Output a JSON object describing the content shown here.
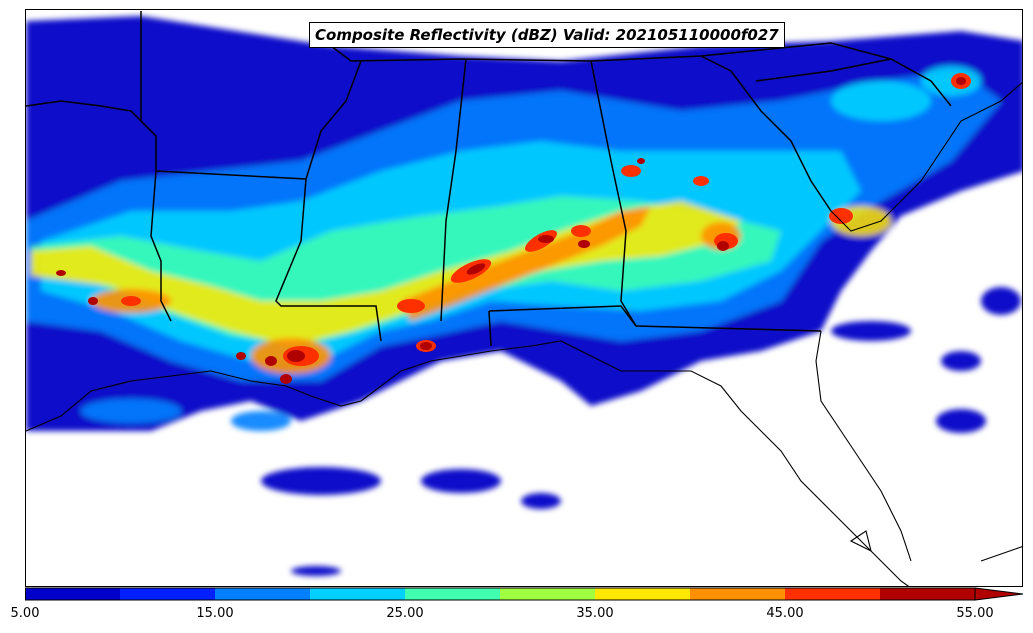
{
  "title": "Composite Reflectivity (dBZ) Valid: 202105110000f027",
  "colorbar": {
    "tick_labels": [
      "5.00",
      "15.00",
      "25.00",
      "35.00",
      "45.00",
      "55.00"
    ],
    "bins": [
      {
        "from": 5,
        "to": 10,
        "color": "#0000c8"
      },
      {
        "from": 10,
        "to": 15,
        "color": "#0020ff"
      },
      {
        "from": 15,
        "to": 20,
        "color": "#0080ff"
      },
      {
        "from": 20,
        "to": 25,
        "color": "#00d0ff"
      },
      {
        "from": 25,
        "to": 30,
        "color": "#40ffb0"
      },
      {
        "from": 30,
        "to": 35,
        "color": "#a0ff40"
      },
      {
        "from": 35,
        "to": 40,
        "color": "#ffe800"
      },
      {
        "from": 40,
        "to": 45,
        "color": "#ff9000"
      },
      {
        "from": 45,
        "to": 50,
        "color": "#ff3000"
      },
      {
        "from": 50,
        "to": 55,
        "color": "#b00000"
      }
    ],
    "extend": "max"
  }
}
